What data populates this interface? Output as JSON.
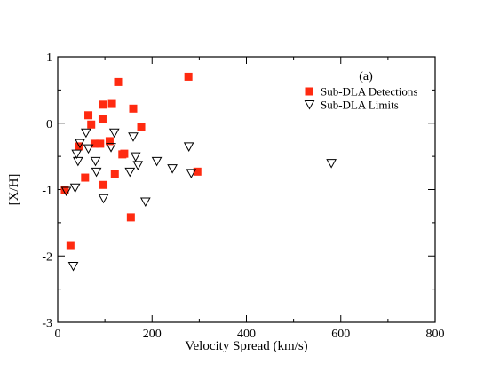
{
  "chart_data": {
    "type": "scatter",
    "xlabel": "Velocity Spread (km/s)",
    "ylabel": "[X/H]",
    "xlim": [
      0,
      800
    ],
    "ylim": [
      -3,
      1
    ],
    "x_ticks": [
      0,
      200,
      400,
      600,
      800
    ],
    "y_ticks": [
      1,
      0,
      -1,
      -2,
      -3
    ],
    "panel_label": "(a)",
    "legend_position": "top-right",
    "grid": false,
    "series": [
      {
        "name": "Sub-DLA Detections",
        "marker": "filled-square",
        "color": "#ff2a10",
        "points": [
          {
            "x": 15,
            "y": -1.0
          },
          {
            "x": 27,
            "y": -1.85
          },
          {
            "x": 45,
            "y": -0.35
          },
          {
            "x": 58,
            "y": -0.82
          },
          {
            "x": 65,
            "y": 0.12
          },
          {
            "x": 71,
            "y": -0.02
          },
          {
            "x": 78,
            "y": -0.31
          },
          {
            "x": 90,
            "y": -0.31
          },
          {
            "x": 95,
            "y": 0.07
          },
          {
            "x": 96,
            "y": 0.28
          },
          {
            "x": 97,
            "y": -0.93
          },
          {
            "x": 110,
            "y": -0.27
          },
          {
            "x": 115,
            "y": 0.29
          },
          {
            "x": 121,
            "y": -0.77
          },
          {
            "x": 128,
            "y": 0.62
          },
          {
            "x": 137,
            "y": -0.47
          },
          {
            "x": 141,
            "y": -0.46
          },
          {
            "x": 155,
            "y": -1.42
          },
          {
            "x": 160,
            "y": 0.22
          },
          {
            "x": 177,
            "y": -0.06
          },
          {
            "x": 277,
            "y": 0.7
          },
          {
            "x": 296,
            "y": -0.73
          }
        ]
      },
      {
        "name": "Sub-DLA Limits",
        "marker": "open-triangle-down",
        "color": "#000000",
        "points": [
          {
            "x": 18,
            "y": -1.02
          },
          {
            "x": 33,
            "y": -2.15
          },
          {
            "x": 37,
            "y": -0.97
          },
          {
            "x": 40,
            "y": -0.46
          },
          {
            "x": 43,
            "y": -0.57
          },
          {
            "x": 47,
            "y": -0.3
          },
          {
            "x": 60,
            "y": -0.14
          },
          {
            "x": 65,
            "y": -0.38
          },
          {
            "x": 80,
            "y": -0.57
          },
          {
            "x": 82,
            "y": -0.73
          },
          {
            "x": 97,
            "y": -1.13
          },
          {
            "x": 113,
            "y": -0.36
          },
          {
            "x": 120,
            "y": -0.14
          },
          {
            "x": 153,
            "y": -0.73
          },
          {
            "x": 160,
            "y": -0.2
          },
          {
            "x": 165,
            "y": -0.5
          },
          {
            "x": 170,
            "y": -0.63
          },
          {
            "x": 186,
            "y": -1.18
          },
          {
            "x": 210,
            "y": -0.57
          },
          {
            "x": 243,
            "y": -0.68
          },
          {
            "x": 278,
            "y": -0.35
          },
          {
            "x": 283,
            "y": -0.75
          },
          {
            "x": 580,
            "y": -0.6
          }
        ]
      }
    ]
  }
}
